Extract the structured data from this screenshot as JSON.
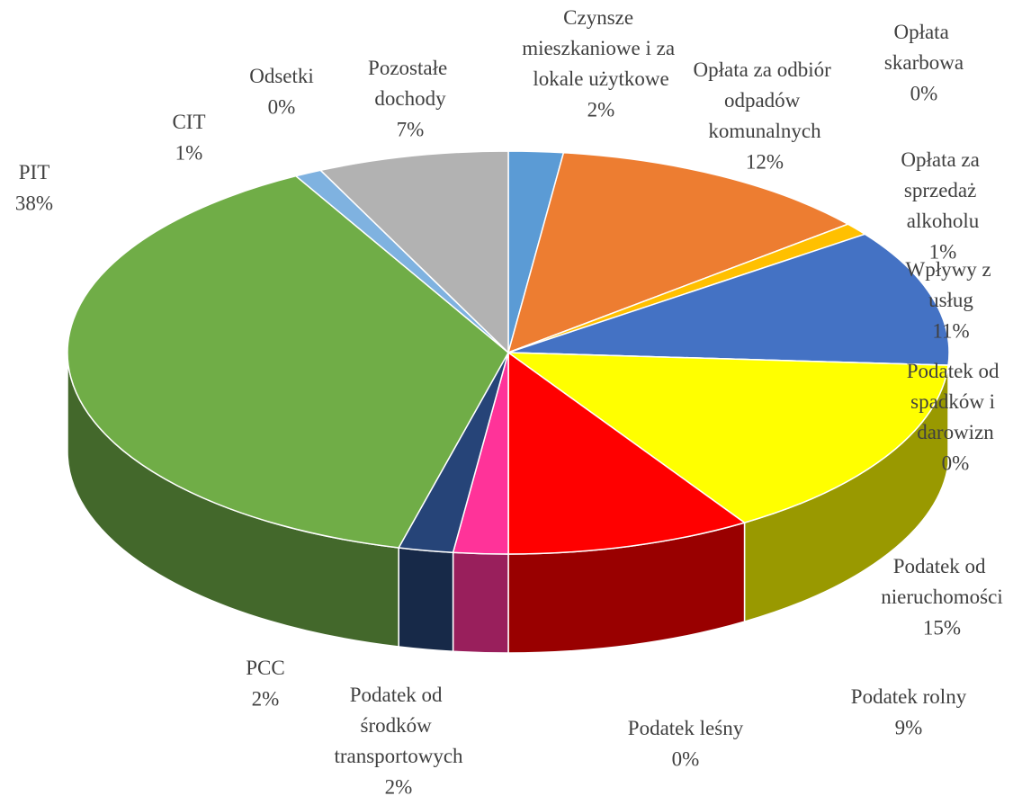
{
  "chart_data": {
    "type": "pie",
    "categories": [
      "Czynsze mieszkaniowe i za lokale użytkowe",
      "Opłata za odbiór odpadów komunalnych",
      "Opłata skarbowa",
      "Opłata za sprzedaż alkoholu",
      "Wpływy z usług",
      "Podatek od spadków i darowizn",
      "Podatek od nieruchomości",
      "Podatek rolny",
      "Podatek leśny",
      "Podatek od środków transportowych",
      "PCC",
      "PIT",
      "CIT",
      "Odsetki",
      "Pozostałe dochody"
    ],
    "values": [
      2,
      12,
      0,
      1,
      11,
      0,
      15,
      9,
      0,
      2,
      2,
      38,
      1,
      0,
      7
    ],
    "value_labels": [
      "2%",
      "12%",
      "0%",
      "1%",
      "11%",
      "0%",
      "15%",
      "9%",
      "0%",
      "2%",
      "2%",
      "38%",
      "1%",
      "0%",
      "7%"
    ],
    "colors": [
      "#5b9bd5",
      "#ed7d31",
      "#a5a5a5",
      "#ffc000",
      "#4472c4",
      "#70ad47",
      "#ffff00",
      "#ff0000",
      "#404040",
      "#ff3399",
      "#264478",
      "#70ad47",
      "#7fb2e0",
      "#f4a460",
      "#b2b2b2"
    ]
  }
}
